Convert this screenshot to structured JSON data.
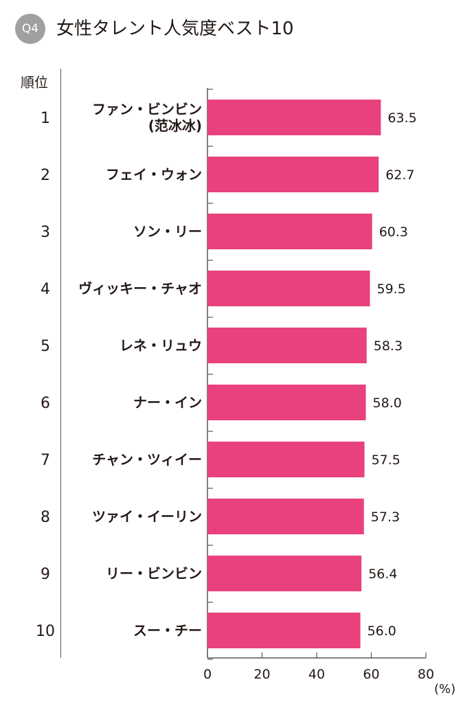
{
  "header": {
    "badge": "Q4",
    "title": "女性タレント人気度ベスト10"
  },
  "rank_header": "順位",
  "unit": "(%)",
  "colors": {
    "bar": "#e8417d",
    "badge": "#9fa0a0",
    "axis": "#595757"
  },
  "chart_data": {
    "type": "bar",
    "orientation": "horizontal",
    "title": "女性タレント人気度ベスト10",
    "categories": [
      {
        "rank": "1",
        "name": "ファン・ビンビン",
        "subname": "(范冰冰)"
      },
      {
        "rank": "2",
        "name": "フェイ・ウォン",
        "subname": ""
      },
      {
        "rank": "3",
        "name": "ソン・リー",
        "subname": ""
      },
      {
        "rank": "4",
        "name": "ヴィッキー・チャオ",
        "subname": ""
      },
      {
        "rank": "5",
        "name": "レネ・リュウ",
        "subname": ""
      },
      {
        "rank": "6",
        "name": "ナー・イン",
        "subname": ""
      },
      {
        "rank": "7",
        "name": "チャン・ツィイー",
        "subname": ""
      },
      {
        "rank": "8",
        "name": "ツァイ・イーリン",
        "subname": ""
      },
      {
        "rank": "9",
        "name": "リー・ビンビン",
        "subname": ""
      },
      {
        "rank": "10",
        "name": "スー・チー",
        "subname": ""
      }
    ],
    "values": [
      63.5,
      62.7,
      60.3,
      59.5,
      58.3,
      58.0,
      57.5,
      57.3,
      56.4,
      56.0
    ],
    "value_labels": [
      "63.5",
      "62.7",
      "60.3",
      "59.5",
      "58.3",
      "58.0",
      "57.5",
      "57.3",
      "56.4",
      "56.0"
    ],
    "xlim": [
      0,
      80
    ],
    "xticks": [
      0,
      20,
      40,
      60,
      80
    ],
    "xtick_labels": [
      "0",
      "20",
      "40",
      "60",
      "80"
    ],
    "xlabel": "(%)",
    "ylabel": "順位",
    "grid": false,
    "legend": "none"
  }
}
